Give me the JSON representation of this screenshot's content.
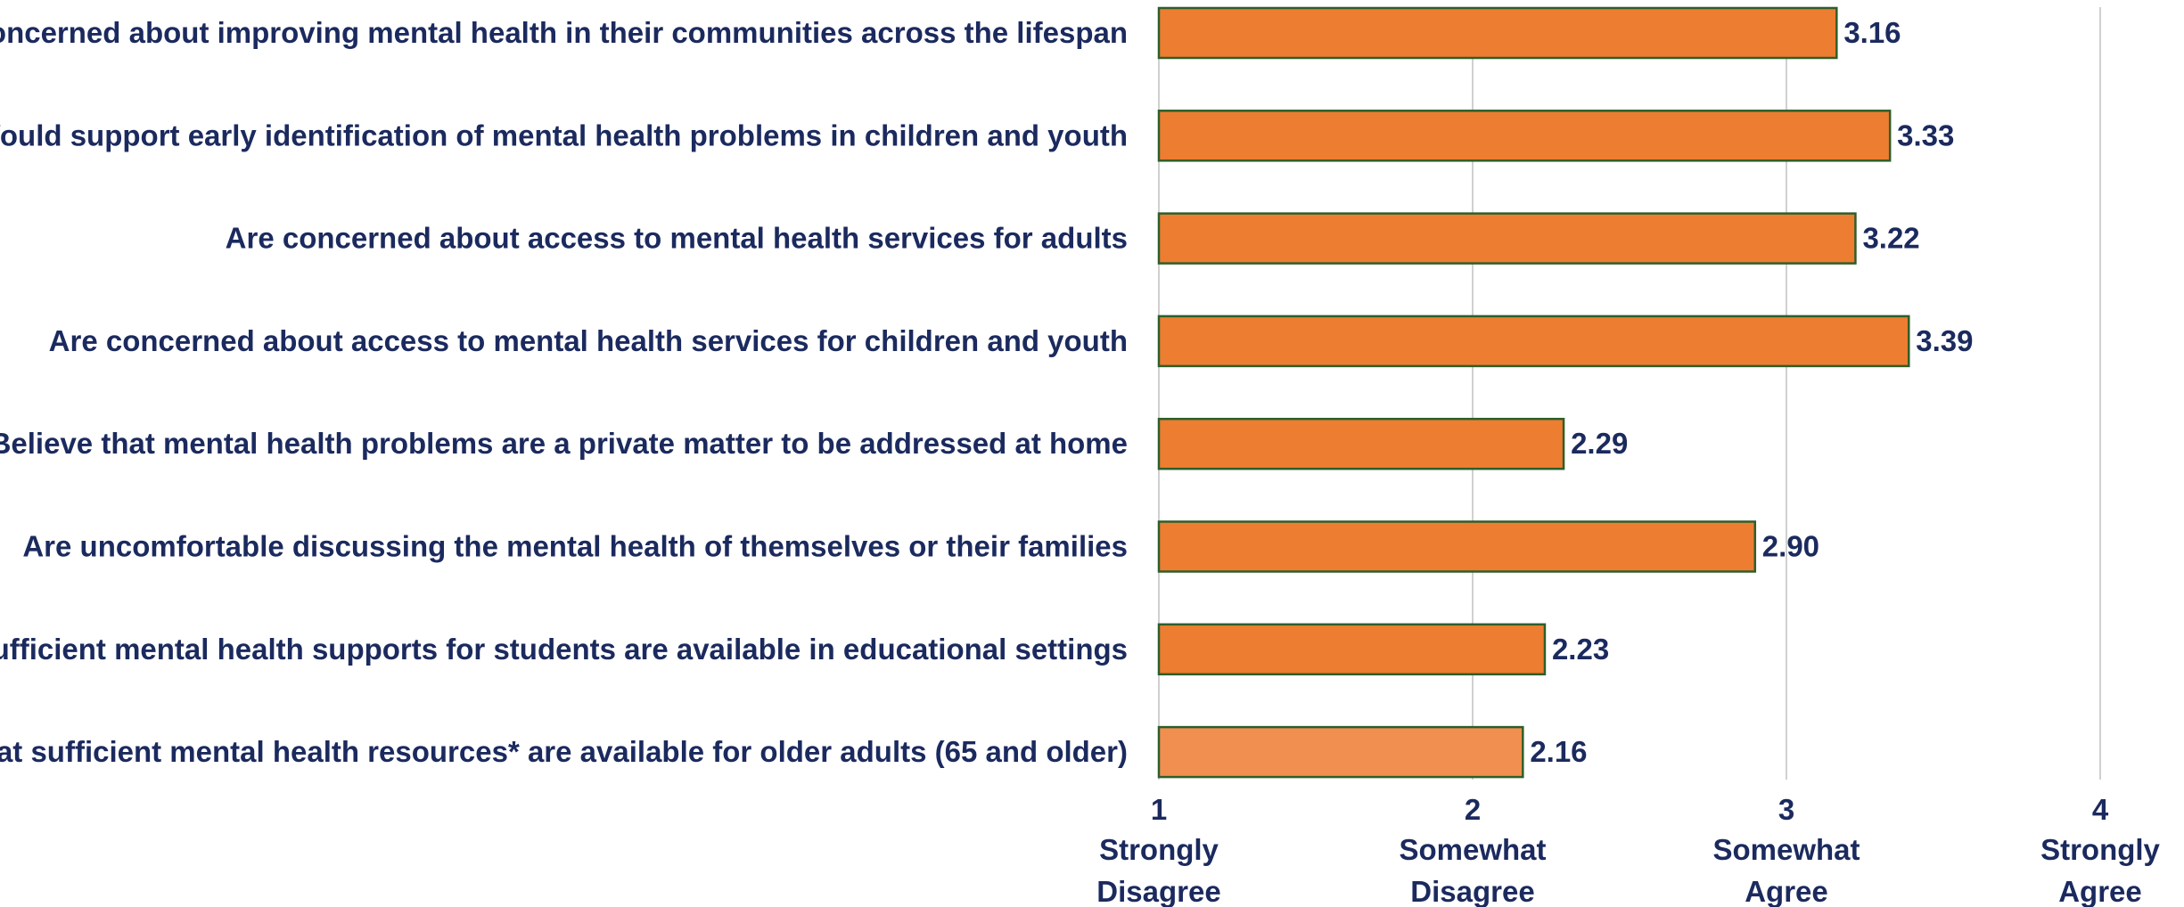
{
  "chart_data": {
    "type": "bar",
    "orientation": "horizontal",
    "title": "",
    "xlabel": "",
    "ylabel": "",
    "xlim": [
      1,
      4
    ],
    "grid": true,
    "categories": [
      "concerned about improving mental health in their communities across the lifespan",
      "Would support early identification of mental health problems in children and youth",
      "Are concerned about access to mental health services for adults",
      "Are concerned about access to mental health services for children and youth",
      "Believe that mental health problems are a private matter to be addressed at home",
      "Are uncomfortable discussing the mental health of themselves or their families",
      "sufficient mental health supports for students are available in educational settings",
      "at sufficient mental health resources* are available for older adults (65 and older)"
    ],
    "values": [
      3.16,
      3.33,
      3.22,
      3.39,
      2.29,
      2.9,
      2.23,
      2.16
    ],
    "value_labels": [
      "3.16",
      "3.33",
      "3.22",
      "3.39",
      "2.29",
      "2.90",
      "2.23",
      "2.16"
    ],
    "ticks": [
      {
        "value": 1,
        "line1": "1",
        "line2": "Strongly",
        "line3": "Disagree"
      },
      {
        "value": 2,
        "line1": "2",
        "line2": "Somewhat",
        "line3": "Disagree"
      },
      {
        "value": 3,
        "line1": "3",
        "line2": "Somewhat",
        "line3": "Agree"
      },
      {
        "value": 4,
        "line1": "4",
        "line2": "Strongly",
        "line3": "Agree"
      }
    ],
    "colors": {
      "bar": "#ed7d31",
      "bar_highlight": "#f08f4f",
      "bar_border": "#2e5e2a",
      "text": "#1b2a5e",
      "grid": "#d0d0d0"
    }
  }
}
